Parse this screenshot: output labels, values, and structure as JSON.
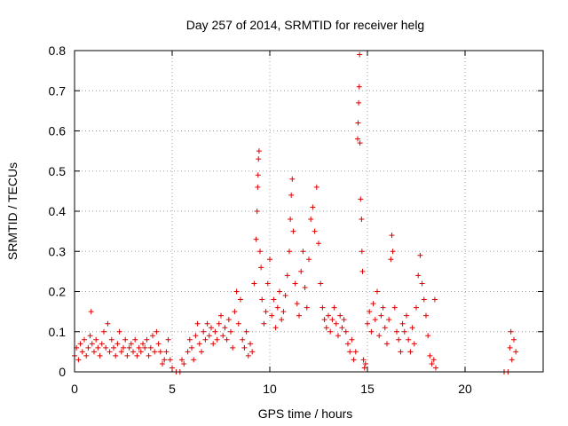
{
  "chart_data": {
    "type": "scatter",
    "title": "Day 257 of 2014, SRMTID for receiver helg",
    "xlabel": "GPS time / hours",
    "ylabel": "SRMTID / TECUs",
    "xlim": [
      0,
      24
    ],
    "ylim": [
      0,
      0.8
    ],
    "grid": true,
    "marker": "+",
    "marker_color": "#e00000",
    "x_ticks": [
      0,
      5,
      10,
      15,
      20
    ],
    "x_tick_labels": [
      "0",
      "5",
      "10",
      "15",
      "20"
    ],
    "y_ticks": [
      0,
      0.1,
      0.2,
      0.3,
      0.4,
      0.5,
      0.6,
      0.7,
      0.8
    ],
    "y_tick_labels": [
      "0",
      "0.1",
      "0.2",
      "0.3",
      "0.4",
      "0.5",
      "0.6",
      "0.7",
      "0.8"
    ],
    "series": [
      {
        "name": "SRMTID",
        "points": [
          [
            0.0,
            0.04
          ],
          [
            0.1,
            0.06
          ],
          [
            0.2,
            0.03
          ],
          [
            0.3,
            0.07
          ],
          [
            0.4,
            0.05
          ],
          [
            0.5,
            0.08
          ],
          [
            0.6,
            0.04
          ],
          [
            0.7,
            0.06
          ],
          [
            0.8,
            0.09
          ],
          [
            0.85,
            0.15
          ],
          [
            0.9,
            0.07
          ],
          [
            1.0,
            0.05
          ],
          [
            1.1,
            0.08
          ],
          [
            1.2,
            0.06
          ],
          [
            1.3,
            0.04
          ],
          [
            1.4,
            0.07
          ],
          [
            1.5,
            0.1
          ],
          [
            1.6,
            0.06
          ],
          [
            1.7,
            0.12
          ],
          [
            1.8,
            0.05
          ],
          [
            1.9,
            0.08
          ],
          [
            2.0,
            0.06
          ],
          [
            2.1,
            0.04
          ],
          [
            2.2,
            0.07
          ],
          [
            2.3,
            0.1
          ],
          [
            2.4,
            0.05
          ],
          [
            2.5,
            0.06
          ],
          [
            2.6,
            0.08
          ],
          [
            2.7,
            0.04
          ],
          [
            2.8,
            0.06
          ],
          [
            2.9,
            0.07
          ],
          [
            3.0,
            0.05
          ],
          [
            3.1,
            0.08
          ],
          [
            3.2,
            0.04
          ],
          [
            3.3,
            0.06
          ],
          [
            3.4,
            0.05
          ],
          [
            3.5,
            0.07
          ],
          [
            3.6,
            0.06
          ],
          [
            3.7,
            0.08
          ],
          [
            3.8,
            0.04
          ],
          [
            3.9,
            0.06
          ],
          [
            4.0,
            0.09
          ],
          [
            4.1,
            0.05
          ],
          [
            4.2,
            0.1
          ],
          [
            4.3,
            0.07
          ],
          [
            4.4,
            0.05
          ],
          [
            4.5,
            0.02
          ],
          [
            4.6,
            0.03
          ],
          [
            4.7,
            0.05
          ],
          [
            4.8,
            0.08
          ],
          [
            4.9,
            0.03
          ],
          [
            5.0,
            0.01
          ],
          [
            5.2,
            0.0
          ],
          [
            5.4,
            0.0
          ],
          [
            5.5,
            0.03
          ],
          [
            5.6,
            0.02
          ],
          [
            5.8,
            0.05
          ],
          [
            5.9,
            0.08
          ],
          [
            6.0,
            0.06
          ],
          [
            6.1,
            0.03
          ],
          [
            6.2,
            0.09
          ],
          [
            6.3,
            0.12
          ],
          [
            6.4,
            0.07
          ],
          [
            6.5,
            0.05
          ],
          [
            6.6,
            0.1
          ],
          [
            6.7,
            0.08
          ],
          [
            6.8,
            0.12
          ],
          [
            6.9,
            0.09
          ],
          [
            7.0,
            0.11
          ],
          [
            7.1,
            0.07
          ],
          [
            7.2,
            0.1
          ],
          [
            7.3,
            0.08
          ],
          [
            7.4,
            0.12
          ],
          [
            7.5,
            0.14
          ],
          [
            7.6,
            0.09
          ],
          [
            7.7,
            0.11
          ],
          [
            7.8,
            0.08
          ],
          [
            7.9,
            0.13
          ],
          [
            8.0,
            0.1
          ],
          [
            8.1,
            0.06
          ],
          [
            8.2,
            0.15
          ],
          [
            8.3,
            0.2
          ],
          [
            8.4,
            0.12
          ],
          [
            8.5,
            0.18
          ],
          [
            8.6,
            0.08
          ],
          [
            8.7,
            0.06
          ],
          [
            8.8,
            0.1
          ],
          [
            8.9,
            0.04
          ],
          [
            9.0,
            0.07
          ],
          [
            9.1,
            0.05
          ],
          [
            9.2,
            0.22
          ],
          [
            9.3,
            0.33
          ],
          [
            9.35,
            0.4
          ],
          [
            9.38,
            0.46
          ],
          [
            9.4,
            0.49
          ],
          [
            9.42,
            0.53
          ],
          [
            9.45,
            0.55
          ],
          [
            9.5,
            0.3
          ],
          [
            9.55,
            0.26
          ],
          [
            9.6,
            0.18
          ],
          [
            9.7,
            0.12
          ],
          [
            9.8,
            0.15
          ],
          [
            9.9,
            0.22
          ],
          [
            10.0,
            0.28
          ],
          [
            10.1,
            0.14
          ],
          [
            10.2,
            0.18
          ],
          [
            10.3,
            0.11
          ],
          [
            10.4,
            0.16
          ],
          [
            10.5,
            0.2
          ],
          [
            10.6,
            0.13
          ],
          [
            10.7,
            0.15
          ],
          [
            10.8,
            0.19
          ],
          [
            10.9,
            0.24
          ],
          [
            11.0,
            0.3
          ],
          [
            11.05,
            0.38
          ],
          [
            11.1,
            0.44
          ],
          [
            11.15,
            0.48
          ],
          [
            11.2,
            0.35
          ],
          [
            11.3,
            0.22
          ],
          [
            11.4,
            0.17
          ],
          [
            11.5,
            0.14
          ],
          [
            11.6,
            0.25
          ],
          [
            11.7,
            0.3
          ],
          [
            11.8,
            0.21
          ],
          [
            11.9,
            0.16
          ],
          [
            12.0,
            0.28
          ],
          [
            12.1,
            0.38
          ],
          [
            12.2,
            0.41
          ],
          [
            12.3,
            0.35
          ],
          [
            12.4,
            0.46
          ],
          [
            12.5,
            0.32
          ],
          [
            12.6,
            0.22
          ],
          [
            12.7,
            0.16
          ],
          [
            12.8,
            0.13
          ],
          [
            12.9,
            0.11
          ],
          [
            13.0,
            0.14
          ],
          [
            13.1,
            0.1
          ],
          [
            13.2,
            0.13
          ],
          [
            13.3,
            0.16
          ],
          [
            13.4,
            0.12
          ],
          [
            13.5,
            0.09
          ],
          [
            13.6,
            0.14
          ],
          [
            13.7,
            0.11
          ],
          [
            13.8,
            0.13
          ],
          [
            13.9,
            0.1
          ],
          [
            14.0,
            0.07
          ],
          [
            14.1,
            0.05
          ],
          [
            14.2,
            0.08
          ],
          [
            14.3,
            0.03
          ],
          [
            14.4,
            0.05
          ],
          [
            14.5,
            0.58
          ],
          [
            14.52,
            0.62
          ],
          [
            14.55,
            0.67
          ],
          [
            14.58,
            0.71
          ],
          [
            14.6,
            0.79
          ],
          [
            14.62,
            0.57
          ],
          [
            14.65,
            0.43
          ],
          [
            14.7,
            0.38
          ],
          [
            14.72,
            0.3
          ],
          [
            14.75,
            0.25
          ],
          [
            14.8,
            0.03
          ],
          [
            14.85,
            0.01
          ],
          [
            14.9,
            0.02
          ],
          [
            15.0,
            0.12
          ],
          [
            15.1,
            0.15
          ],
          [
            15.2,
            0.1
          ],
          [
            15.3,
            0.17
          ],
          [
            15.4,
            0.13
          ],
          [
            15.5,
            0.2
          ],
          [
            15.6,
            0.09
          ],
          [
            15.7,
            0.14
          ],
          [
            15.8,
            0.16
          ],
          [
            15.9,
            0.11
          ],
          [
            16.0,
            0.07
          ],
          [
            16.1,
            0.13
          ],
          [
            16.2,
            0.28
          ],
          [
            16.25,
            0.34
          ],
          [
            16.3,
            0.3
          ],
          [
            16.4,
            0.16
          ],
          [
            16.5,
            0.1
          ],
          [
            16.6,
            0.08
          ],
          [
            16.7,
            0.05
          ],
          [
            16.8,
            0.12
          ],
          [
            16.9,
            0.1
          ],
          [
            17.0,
            0.14
          ],
          [
            17.1,
            0.08
          ],
          [
            17.2,
            0.05
          ],
          [
            17.3,
            0.11
          ],
          [
            17.4,
            0.07
          ],
          [
            17.5,
            0.16
          ],
          [
            17.6,
            0.24
          ],
          [
            17.7,
            0.29
          ],
          [
            17.8,
            0.22
          ],
          [
            17.9,
            0.18
          ],
          [
            18.0,
            0.14
          ],
          [
            18.1,
            0.09
          ],
          [
            18.2,
            0.04
          ],
          [
            18.3,
            0.02
          ],
          [
            18.4,
            0.03
          ],
          [
            18.45,
            0.18
          ],
          [
            18.5,
            0.01
          ],
          [
            22.0,
            0.0
          ],
          [
            22.2,
            0.0
          ],
          [
            22.3,
            0.06
          ],
          [
            22.35,
            0.1
          ],
          [
            22.4,
            0.03
          ],
          [
            22.5,
            0.08
          ],
          [
            22.6,
            0.05
          ]
        ]
      }
    ]
  }
}
